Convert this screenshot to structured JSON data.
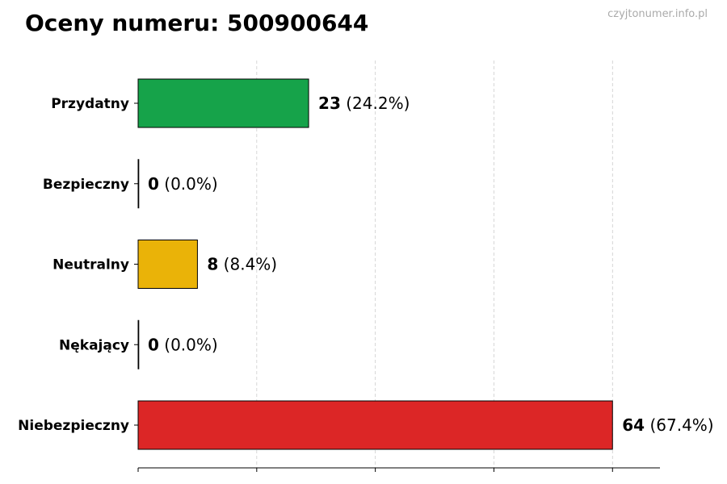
{
  "title": "Oceny numeru: 500900644",
  "watermark": "czyjtonumer.info.pl",
  "chart_data": {
    "type": "bar",
    "orientation": "horizontal",
    "title": "Oceny numeru: 500900644",
    "categories": [
      "Przydatny",
      "Bezpieczny",
      "Neutralny",
      "Nękający",
      "Niebezpieczny"
    ],
    "values": [
      23,
      0,
      8,
      0,
      64
    ],
    "percent_labels": [
      "(24.2%)",
      "(0.0%)",
      "(8.4%)",
      "(0.0%)",
      "(67.4%)"
    ],
    "colors": [
      "#16a34a",
      "#1f77b4",
      "#eab308",
      "#1f77b4",
      "#dc2626"
    ],
    "xlim": [
      0,
      70.4
    ],
    "xticks": [
      0,
      16,
      32,
      48,
      64
    ],
    "grid": "vertical dashed",
    "xlabel": "",
    "ylabel": ""
  }
}
